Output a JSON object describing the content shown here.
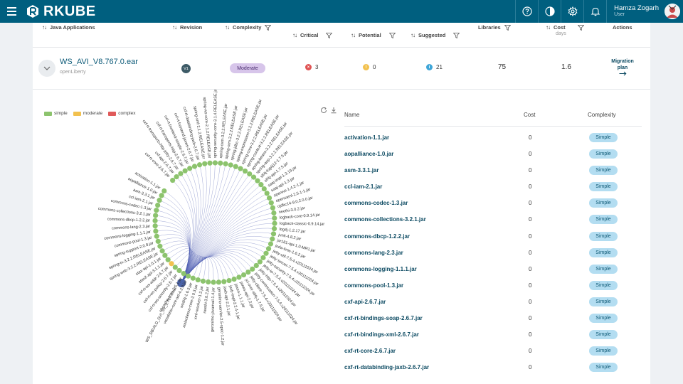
{
  "brand": {
    "name": "RKUBE"
  },
  "user": {
    "name": "Hamza Zogarh",
    "role": "User"
  },
  "icons": [
    "help-icon",
    "contrast-icon",
    "gear-icon",
    "bell-icon"
  ],
  "table": {
    "columns": {
      "app": "Java Applications",
      "revision": "Revision",
      "complexity": "Complexity",
      "critical": "Critical",
      "potential": "Potential",
      "suggested": "Suggested",
      "libraries": "Libraries",
      "cost": "Cost",
      "cost_unit": "days",
      "actions": "Actions"
    },
    "row": {
      "name": "WS_AVI_V8.767.0.ear",
      "server": "openLiberty",
      "revision": "V1",
      "complexity": "Moderate",
      "critical": "3",
      "potential": "0",
      "suggested": "21",
      "libraries": "75",
      "cost": "1.6",
      "action_line1": "Migration",
      "action_line2": "plan"
    }
  },
  "legend": {
    "simple": "simple",
    "moderate": "moderate",
    "complex": "complex"
  },
  "colors": {
    "simple": "#8cc36d",
    "moderate": "#f2c14e",
    "complex": "#e05a5a",
    "link": "#4a5bb0"
  },
  "graph": {
    "center_label": "WS_RBUILD_GVI_SV_2.767.0.ear",
    "nodes": [
      "activation-1.1.jar",
      "aopalliance-1.0.jar",
      "asm-3.3.1.jar",
      "ccl-iam-2.1.jar",
      "commons-codec-1.3.jar",
      "commons-collections-3.2.1.jar",
      "commons-dbcp-1.2.2.jar",
      "commons-lang-2.3.jar",
      "commons-logging-1.1.1.jar",
      "commons-pool-1.3.jar",
      "spring-support-2.0.8.jar",
      "spring-tx-3.2.2.RELEASE.jar",
      "spring-web-3.2.2.RELEASE.jar",
      "stax-api-1.0.1.jar",
      "stax2-api-3.1.1.jar",
      "cxf-rt-ws-addr-2.6.7.jar",
      "cxf-rt-ws-policy-2.6.7.jar",
      "cxf-rt-ws-security-2.6.7.jar",
      "ehcache-core-2.5.1.jar",
      "woodstox-core-asl-4.2.0.jar",
      "wsdl4j-1.6.3.jar",
      "xmlschema-core-2.0.3.jar",
      "xml-resolver-1.2.jar",
      "neethi-3.0.2.jar",
      "geronimo-javamail-1.4.jar",
      "geronimo-servlet-2.5-spec-1.2.jar",
      "jaxb-api-2.2.1.jar",
      "jaxb-impl-2.2.4-1.jar",
      "jaxen-1.1.1.jar",
      "jaxws-api-2.2.jar",
      "jcl-over-slf4j-1.7.5.jar",
      "jetty-client-7.5.4.v20111024.jar",
      "jetty-continuation-7.5.4.v20111024.jar",
      "jetty-http-7.5.4.v20111024.jar",
      "jetty-io-7.5.4.v20111024.jar",
      "jetty-security-7.5.4.v20111024.jar",
      "jetty-server-7.5.4.v20111024.jar",
      "jetty-util-7.5.4.v20111024.jar",
      "joda-time-1.6.2.jar",
      "jsr181-api-1.0-MR1.jar",
      "junit-4.8.2.jar",
      "log4j-1.2.17.jar",
      "logback-classic-0.9.14.jar",
      "logback-core-0.9.14.jar",
      "neethi-3.0.2.jar",
      "ojdbc14-9.0.2.0.0.jar",
      "opensaml-2.5.1-1.jar",
      "openws-1.4.2-1.jar",
      "saaj-api-1.3.jar",
      "saaj-impl-1.3.19.jar",
      "slf4j-api-1.7.5.jar",
      "slf4j-log4j12-1.7.5.jar",
      "spring-aop-3.2.2.RELEASE.jar",
      "spring-beans-3.2.2.RELEASE.jar",
      "spring-context-3.2.2.RELEASE.jar",
      "spring-core-3.2.2.RELEASE.jar",
      "spring-expression-3.2.2.RELEASE.jar",
      "spring-jdbc-3.2.2.RELEASE.jar",
      "spring-orm-3.2.2.RELEASE.jar",
      "spring-oxm-3.2.2.RELEASE.jar",
      "spring-security-core-3.1.4.RELEASE.jar",
      "spring-ws-core-2.1.2.RELEASE.jar",
      "spring-xml-2.1.2.RELEASE.jar",
      "cxf-rt-databinding-jaxb-2.6.7.jar",
      "cxf-rt-frontend-jaxws-2.6.7.jar",
      "cxf-rt-frontend-simple-2.6.7.jar",
      "cxf-rt-transports-http-2.6.7.jar",
      "cxf-rt-transports-http-jetty-2.6.7.jar",
      "cxf-api-2.6.7.jar",
      "cxf-rt-core-2.6.7.jar"
    ],
    "moderate_node_index": 15
  },
  "libraries": {
    "columns": {
      "name": "Name",
      "cost": "Cost",
      "complexity": "Complexity"
    },
    "rows": [
      {
        "name": "activation-1.1.jar",
        "cost": "0",
        "complexity": "Simple"
      },
      {
        "name": "aopalliance-1.0.jar",
        "cost": "0",
        "complexity": "Simple"
      },
      {
        "name": "asm-3.3.1.jar",
        "cost": "0",
        "complexity": "Simple"
      },
      {
        "name": "ccl-iam-2.1.jar",
        "cost": "0",
        "complexity": "Simple"
      },
      {
        "name": "commons-codec-1.3.jar",
        "cost": "0",
        "complexity": "Simple"
      },
      {
        "name": "commons-collections-3.2.1.jar",
        "cost": "0",
        "complexity": "Simple"
      },
      {
        "name": "commons-dbcp-1.2.2.jar",
        "cost": "0",
        "complexity": "Simple"
      },
      {
        "name": "commons-lang-2.3.jar",
        "cost": "0",
        "complexity": "Simple"
      },
      {
        "name": "commons-logging-1.1.1.jar",
        "cost": "0",
        "complexity": "Simple"
      },
      {
        "name": "commons-pool-1.3.jar",
        "cost": "0",
        "complexity": "Simple"
      },
      {
        "name": "cxf-api-2.6.7.jar",
        "cost": "0",
        "complexity": "Simple"
      },
      {
        "name": "cxf-rt-bindings-soap-2.6.7.jar",
        "cost": "0",
        "complexity": "Simple"
      },
      {
        "name": "cxf-rt-bindings-xml-2.6.7.jar",
        "cost": "0",
        "complexity": "Simple"
      },
      {
        "name": "cxf-rt-core-2.6.7.jar",
        "cost": "0",
        "complexity": "Simple"
      },
      {
        "name": "cxf-rt-databinding-jaxb-2.6.7.jar",
        "cost": "0",
        "complexity": "Simple"
      }
    ]
  }
}
